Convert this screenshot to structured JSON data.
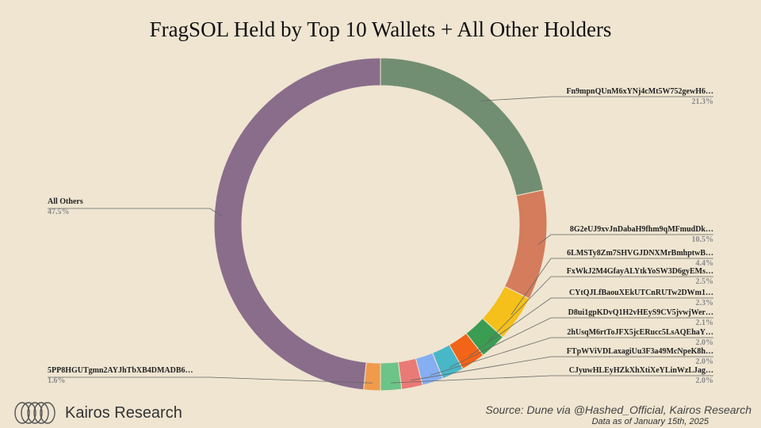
{
  "chart_data": {
    "type": "pie",
    "title": "FragSOL Held by Top 10 Wallets + All Other Holders",
    "slices": [
      {
        "label": "Fn9mpnQUnM6xYNj4cMt5W752gewH6…",
        "value": 21.3,
        "value_label": "21.3%",
        "color": "#728e72"
      },
      {
        "label": "8G2eUJ9xvJnDabaH9fhm9qMFmudDk…",
        "value": 10.5,
        "value_label": "10.5%",
        "color": "#d47c5c"
      },
      {
        "label": "6LMSTy8Zm7SHVGJDNXMrBmhptwB…",
        "value": 4.4,
        "value_label": "4.4%",
        "color": "#f5c01a"
      },
      {
        "label": "FxWkJ2M4GfayALYtkYoSW3D6gyEMs…",
        "value": 2.5,
        "value_label": "2.5%",
        "color": "#3a9d52"
      },
      {
        "label": "CYtQJLfBaouXEkUTCnRUTw2DWm1…",
        "value": 2.3,
        "value_label": "2.3%",
        "color": "#f26418"
      },
      {
        "label": "D8ui1gpKDvQ1H2vHEyS9CV5jvwjWer…",
        "value": 2.1,
        "value_label": "2.1%",
        "color": "#48b7c7"
      },
      {
        "label": "2hUsqM6rtToJFX5jcERucc5LsAQEhaY…",
        "value": 2.0,
        "value_label": "2.0%",
        "color": "#86aef2"
      },
      {
        "label": "FTpWViVDLaxagiUu3F3a49McNpeK8h…",
        "value": 2.0,
        "value_label": "2.0%",
        "color": "#ea7a75"
      },
      {
        "label": "CJyuwHLEyHZkXhXtiXeYLinWzLJag…",
        "value": 2.0,
        "value_label": "2.0%",
        "color": "#f3d048"
      },
      {
        "label": "5PP8HGUTgmn2AYJhTbXB4DMADB6…",
        "value": 1.6,
        "value_label": "1.6%",
        "color": "#6cc488"
      },
      {
        "label": "All Others",
        "value": 47.5,
        "value_label": "47.5%",
        "color": "#fa9c4c"
      }
    ],
    "colors_note_override": {
      "All Others": "#8a6d8b",
      "5PP8HGUTgmn2AYJhTbXB4DMADB6…": "#f09b4c",
      "CJyuwHLEyHZkXhXtiXeYLinWzLJag…": "#6cc488"
    }
  },
  "brand": {
    "name": "Kairos Research"
  },
  "source": {
    "text": "Source: Dune via @Hashed_Official, Kairos Research",
    "as_of": "Data as of January 15th, 2025"
  }
}
